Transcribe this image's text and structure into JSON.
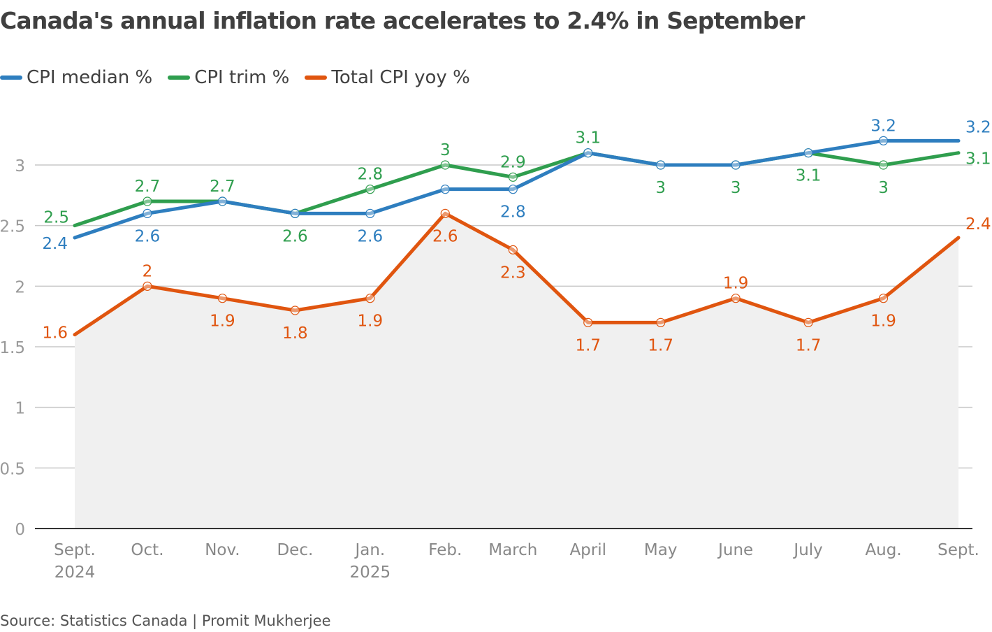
{
  "title": "Canada's annual inflation rate accelerates to 2.4% in September",
  "source": "Source: Statistics Canada | Promit Mukherjee",
  "chart_data": {
    "type": "line",
    "title": "Canada's annual inflation rate accelerates to 2.4% in September",
    "categories": [
      "Sept. 2024",
      "Oct.",
      "Nov.",
      "Dec.",
      "Jan. 2025",
      "Feb.",
      "March",
      "April",
      "May",
      "June",
      "July",
      "Aug.",
      "Sept."
    ],
    "x_tick_labels": [
      [
        "Sept.",
        "2024"
      ],
      [
        "Oct."
      ],
      [
        "Nov."
      ],
      [
        "Dec."
      ],
      [
        "Jan.",
        "2025"
      ],
      [
        "Feb."
      ],
      [
        "March"
      ],
      [
        "April"
      ],
      [
        "May"
      ],
      [
        "June"
      ],
      [
        "July"
      ],
      [
        "Aug."
      ],
      [
        "Sept."
      ]
    ],
    "ylim": [
      0,
      3.3
    ],
    "y_ticks": [
      0,
      0.5,
      1,
      1.5,
      2,
      2.5,
      3
    ],
    "y_tick_labels": [
      "0",
      "0.5",
      "1",
      "1.5",
      "2",
      "2.5",
      "3"
    ],
    "grid": true,
    "legend_placement": "top-left",
    "series": [
      {
        "name": "CPI median %",
        "color": "#2e7ebf",
        "values": [
          2.4,
          2.6,
          2.7,
          2.6,
          2.6,
          2.8,
          2.8,
          3.1,
          3,
          3,
          3.1,
          3.2,
          3.2
        ]
      },
      {
        "name": "CPI trim %",
        "color": "#2f9e4e",
        "values": [
          2.5,
          2.7,
          2.7,
          2.6,
          2.8,
          3,
          2.9,
          3.1,
          3,
          3,
          3.1,
          3,
          3.1
        ]
      },
      {
        "name": "Total CPI yoy %",
        "color": "#e0550f",
        "values": [
          1.6,
          2,
          1.9,
          1.8,
          1.9,
          2.6,
          2.3,
          1.7,
          1.7,
          1.9,
          1.7,
          1.9,
          2.4
        ],
        "area_fill": "#f0f0f0"
      }
    ]
  }
}
